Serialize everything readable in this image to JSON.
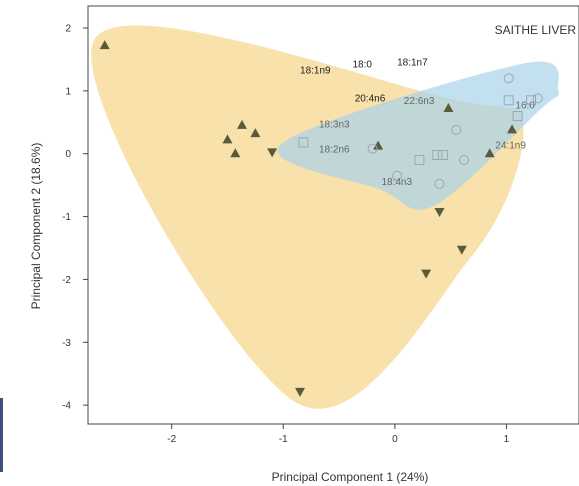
{
  "chart_data": {
    "type": "scatter",
    "title": "SAITHE LIVER",
    "xlabel": "Principal Component 1 (24%)",
    "ylabel": "Principal Component 2 (18.6%)",
    "xlim": [
      -2.75,
      1.65
    ],
    "ylim": [
      -4.3,
      2.35
    ],
    "x_ticks": [
      -2,
      -1,
      0,
      1
    ],
    "y_ticks": [
      2,
      1,
      0,
      -1,
      -2,
      -3,
      -4
    ],
    "grid": false,
    "hull_colors": {
      "triangles": "#f7dc9b",
      "squares": "#a9d3ea",
      "overlap": "#c9dfb9"
    },
    "series": [
      {
        "marker": "triangle-up",
        "color": "#5b5a3a",
        "points": [
          [
            -2.6,
            1.72
          ],
          [
            -1.5,
            0.22
          ],
          [
            -1.43,
            0.0
          ],
          [
            -1.37,
            0.45
          ],
          [
            -1.25,
            0.32
          ],
          [
            -0.15,
            0.12
          ],
          [
            0.48,
            0.72
          ],
          [
            0.85,
            0.0
          ],
          [
            1.05,
            0.38
          ]
        ]
      },
      {
        "marker": "triangle-down",
        "color": "#5b5a3a",
        "points": [
          [
            -1.1,
            0.03
          ],
          [
            0.4,
            -0.92
          ],
          [
            0.28,
            -1.9
          ],
          [
            0.6,
            -1.52
          ],
          [
            -0.85,
            -3.78
          ]
        ]
      },
      {
        "marker": "square-open",
        "color": "#9aa8b4",
        "points": [
          [
            -0.82,
            0.18
          ],
          [
            0.22,
            -0.1
          ],
          [
            0.38,
            -0.02
          ],
          [
            0.43,
            -0.02
          ],
          [
            1.02,
            0.85
          ],
          [
            1.1,
            0.6
          ],
          [
            1.22,
            0.85
          ]
        ]
      },
      {
        "marker": "circle-open",
        "color": "#9aa8b4",
        "points": [
          [
            -0.2,
            0.08
          ],
          [
            0.02,
            -0.35
          ],
          [
            0.4,
            -0.48
          ],
          [
            0.55,
            0.38
          ],
          [
            0.62,
            -0.1
          ],
          [
            1.02,
            1.2
          ],
          [
            1.28,
            0.88
          ]
        ]
      }
    ],
    "annotations": [
      {
        "text": "18:1n9",
        "x": -0.85,
        "y": 1.28,
        "tone": "dark"
      },
      {
        "text": "18:0",
        "x": -0.38,
        "y": 1.37,
        "tone": "dark"
      },
      {
        "text": "18:1n7",
        "x": 0.02,
        "y": 1.4,
        "tone": "dark"
      },
      {
        "text": "20:4n6",
        "x": -0.36,
        "y": 0.83,
        "tone": "dark"
      },
      {
        "text": "22:6n3",
        "x": 0.08,
        "y": 0.79,
        "tone": "faint"
      },
      {
        "text": "16:0",
        "x": 1.08,
        "y": 0.72,
        "tone": "faint"
      },
      {
        "text": "18:3n3",
        "x": -0.68,
        "y": 0.42,
        "tone": "faint"
      },
      {
        "text": "18:2n6",
        "x": -0.68,
        "y": 0.02,
        "tone": "faint"
      },
      {
        "text": "24:1n9",
        "x": 0.9,
        "y": 0.08,
        "tone": "faint"
      },
      {
        "text": "18:4n3",
        "x": -0.12,
        "y": -0.5,
        "tone": "faint"
      }
    ]
  }
}
